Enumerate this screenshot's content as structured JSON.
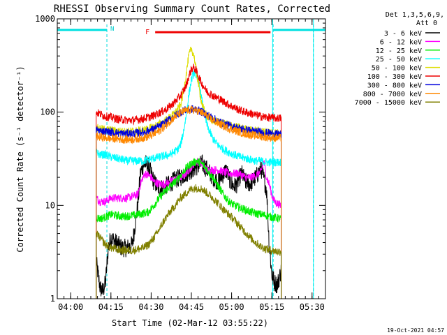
{
  "chart_data": {
    "type": "line",
    "title": "RHESSI Observing Summary Count Rates, Corrected",
    "xlabel": "Start Time (02-Mar-12 03:55:22)",
    "ylabel": "Corrected Count Rate (s⁻¹ detector⁻¹)",
    "footer": "19-Oct-2021 04:57",
    "y_scale": "log",
    "ylim": [
      1,
      1000
    ],
    "xlim_min": [
      0,
      100
    ],
    "x_ticks": [
      {
        "min": 5,
        "label": "04:00"
      },
      {
        "min": 20,
        "label": "04:15"
      },
      {
        "min": 35,
        "label": "04:30"
      },
      {
        "min": 50,
        "label": "04:45"
      },
      {
        "min": 65,
        "label": "05:00"
      },
      {
        "min": 80,
        "label": "05:15"
      },
      {
        "min": 95,
        "label": "05:30"
      }
    ],
    "y_ticks": [
      {
        "value": 1,
        "label": "1"
      },
      {
        "value": 10,
        "label": "10"
      },
      {
        "value": 100,
        "label": "100"
      },
      {
        "value": 1000,
        "label": "1000"
      }
    ],
    "legend_header": [
      "Det 1,3,5,6,9,",
      "Att 0"
    ],
    "legend_position": "right",
    "night_markers": [
      {
        "min": 18.5,
        "label": "N"
      },
      {
        "min": 80.5,
        "label": ""
      },
      {
        "min": 95.5,
        "label": ""
      }
    ],
    "flare_bar": {
      "label": "F",
      "start_min": 36.5,
      "end_min": 79.5,
      "value": 720,
      "color": "#ee0000"
    },
    "night_bars": [
      {
        "start_min": 0,
        "end_min": 18.5,
        "value": 760,
        "color": "#00e0e0"
      },
      {
        "start_min": 80.5,
        "end_min": 100,
        "value": 760,
        "color": "#00e0e0"
      }
    ],
    "data_interval_min": [
      14.5,
      83.5
    ],
    "cyan_lines_min": [
      0,
      80.3,
      95.5
    ],
    "series": [
      {
        "name": "3 - 6 keV",
        "color": "#000000",
        "x": [
          14.5,
          16,
          17,
          18,
          19,
          20,
          22,
          24,
          26,
          28,
          30,
          31,
          32,
          33,
          34,
          35,
          36,
          38,
          40,
          42,
          44,
          46,
          48,
          50,
          52,
          54,
          55,
          56,
          57,
          58,
          60,
          62,
          63,
          64,
          65,
          66,
          67,
          68,
          69,
          70,
          72,
          74,
          76,
          78,
          79,
          80,
          81,
          82,
          83.5
        ],
        "y": [
          2.5,
          1.3,
          1.2,
          1.5,
          3.5,
          4.5,
          4.0,
          3.5,
          3.5,
          3.8,
          10,
          22,
          27,
          28,
          26,
          22,
          18,
          15,
          16,
          17,
          19,
          20,
          22,
          24,
          26,
          28,
          26,
          24,
          22,
          20,
          18,
          22,
          24,
          20,
          17,
          16,
          17,
          20,
          22,
          18,
          17,
          20,
          25,
          15,
          4,
          1.8,
          1.5,
          1.4,
          2.0
        ]
      },
      {
        "name": "6 - 12 keV",
        "color": "#ff00ff",
        "x": [
          14.5,
          16,
          18,
          20,
          22,
          24,
          26,
          28,
          30,
          31,
          32,
          33,
          34,
          35,
          36,
          38,
          40,
          42,
          44,
          46,
          48,
          50,
          52,
          54,
          55,
          56,
          58,
          60,
          62,
          64,
          66,
          68,
          70,
          72,
          74,
          76,
          77,
          78,
          79,
          80,
          81,
          82,
          83.5
        ],
        "y": [
          12,
          11,
          11,
          12,
          12,
          12,
          12,
          12.5,
          13,
          17,
          20,
          22,
          21,
          20,
          18,
          17,
          17,
          18,
          19,
          20,
          22,
          26,
          30,
          28,
          25,
          24,
          24,
          24,
          23,
          22,
          22,
          22,
          20,
          20,
          21,
          23,
          30,
          20,
          17,
          13,
          11,
          10.5,
          10
        ]
      },
      {
        "name": "12 - 25 keV",
        "color": "#00ee00",
        "x": [
          14.5,
          16,
          18,
          20,
          22,
          24,
          26,
          28,
          30,
          32,
          34,
          36,
          38,
          40,
          42,
          44,
          46,
          48,
          50,
          52,
          54,
          56,
          58,
          60,
          62,
          64,
          66,
          68,
          70,
          72,
          74,
          76,
          78,
          80,
          82,
          83.5
        ],
        "y": [
          7.5,
          7.2,
          7.5,
          8.0,
          7.8,
          7.6,
          7.7,
          7.8,
          8.0,
          8.2,
          8.5,
          10,
          12,
          14,
          16,
          18,
          21,
          25,
          28,
          30,
          28,
          24,
          20,
          16,
          13,
          11,
          10,
          9.5,
          9.0,
          8.5,
          8.2,
          8.0,
          7.8,
          7.5,
          7.3,
          7.2
        ]
      },
      {
        "name": "25 - 50 keV",
        "color": "#00ffff",
        "x": [
          14.5,
          16,
          18,
          20,
          22,
          24,
          26,
          28,
          30,
          32,
          34,
          36,
          38,
          40,
          42,
          44,
          45,
          46,
          47,
          48,
          49,
          50,
          51,
          52,
          53,
          54,
          55,
          56,
          58,
          60,
          62,
          64,
          66,
          68,
          70,
          72,
          74,
          76,
          78,
          80,
          82,
          83.5
        ],
        "y": [
          37,
          35,
          35,
          33,
          32,
          31,
          30,
          30,
          30,
          30,
          31,
          32,
          33,
          34,
          35,
          38,
          40,
          45,
          60,
          90,
          150,
          220,
          270,
          250,
          190,
          130,
          90,
          70,
          52,
          44,
          40,
          37,
          35,
          33,
          32,
          31,
          30,
          30,
          29,
          29,
          29,
          29
        ]
      },
      {
        "name": "50 - 100 keV",
        "color": "#dddd00",
        "x": [
          14.5,
          16,
          18,
          20,
          22,
          24,
          26,
          28,
          30,
          32,
          34,
          36,
          38,
          40,
          42,
          44,
          46,
          47,
          48,
          49,
          50,
          51,
          52,
          53,
          54,
          55,
          56,
          58,
          60,
          62,
          64,
          66,
          68,
          70,
          72,
          74,
          76,
          78,
          80,
          82,
          83.5
        ],
        "y": [
          68,
          66,
          65,
          64,
          63,
          62,
          62,
          62,
          63,
          64,
          66,
          70,
          74,
          80,
          88,
          98,
          120,
          160,
          250,
          400,
          480,
          400,
          260,
          170,
          120,
          100,
          90,
          82,
          78,
          75,
          73,
          70,
          68,
          66,
          64,
          63,
          62,
          62,
          61,
          60,
          60
        ]
      },
      {
        "name": "100 - 300 keV",
        "color": "#ee0000",
        "x": [
          14.5,
          16,
          18,
          20,
          22,
          24,
          26,
          28,
          30,
          32,
          34,
          36,
          38,
          40,
          42,
          44,
          46,
          48,
          49,
          50,
          51,
          52,
          53,
          54,
          55,
          56,
          58,
          60,
          62,
          64,
          66,
          68,
          70,
          72,
          74,
          76,
          78,
          80,
          82,
          83.5
        ],
        "y": [
          100,
          95,
          90,
          88,
          85,
          83,
          82,
          82,
          83,
          85,
          88,
          92,
          98,
          105,
          115,
          130,
          150,
          190,
          240,
          290,
          300,
          270,
          230,
          200,
          180,
          165,
          150,
          140,
          130,
          120,
          112,
          105,
          100,
          97,
          93,
          90,
          88,
          87,
          86,
          86
        ]
      },
      {
        "name": "300 - 800 keV",
        "color": "#0000dd",
        "x": [
          14.5,
          16,
          18,
          20,
          22,
          24,
          26,
          28,
          30,
          32,
          34,
          36,
          38,
          40,
          42,
          44,
          46,
          48,
          50,
          52,
          54,
          56,
          58,
          60,
          62,
          64,
          66,
          68,
          70,
          72,
          74,
          76,
          78,
          80,
          82,
          83.5
        ],
        "y": [
          65,
          63,
          62,
          61,
          60,
          59,
          59,
          59,
          60,
          61,
          63,
          66,
          70,
          76,
          84,
          92,
          100,
          106,
          108,
          106,
          100,
          93,
          86,
          80,
          75,
          72,
          69,
          67,
          65,
          63,
          62,
          61,
          60,
          59,
          58,
          58
        ]
      },
      {
        "name": "800 - 7000 keV",
        "color": "#ff8800",
        "x": [
          14.5,
          16,
          18,
          20,
          22,
          24,
          26,
          28,
          30,
          32,
          34,
          36,
          38,
          40,
          42,
          44,
          46,
          48,
          50,
          52,
          54,
          56,
          58,
          60,
          62,
          64,
          66,
          68,
          70,
          72,
          74,
          76,
          78,
          80,
          82,
          83.5
        ],
        "y": [
          55,
          54,
          53,
          52,
          52,
          51,
          51,
          51,
          52,
          53,
          55,
          58,
          63,
          70,
          80,
          90,
          98,
          104,
          106,
          104,
          98,
          90,
          82,
          76,
          71,
          67,
          64,
          61,
          59,
          57,
          56,
          55,
          54,
          53,
          53,
          53
        ]
      },
      {
        "name": "7000 - 15000 keV",
        "color": "#808000",
        "x": [
          14.5,
          16,
          18,
          20,
          22,
          24,
          26,
          28,
          30,
          32,
          34,
          36,
          38,
          40,
          42,
          44,
          46,
          48,
          50,
          52,
          54,
          56,
          58,
          60,
          62,
          64,
          66,
          68,
          70,
          72,
          74,
          76,
          78,
          80,
          82,
          83.5
        ],
        "y": [
          5.0,
          4.5,
          3.8,
          3.5,
          3.4,
          3.3,
          3.3,
          3.3,
          3.4,
          3.5,
          3.8,
          4.5,
          5.5,
          7.0,
          8.5,
          10,
          12,
          13.5,
          15,
          15.5,
          15,
          13.5,
          12,
          10.5,
          9.0,
          8.0,
          7.0,
          6.0,
          5.2,
          4.5,
          4.0,
          3.6,
          3.4,
          3.3,
          3.2,
          3.2
        ]
      }
    ]
  }
}
